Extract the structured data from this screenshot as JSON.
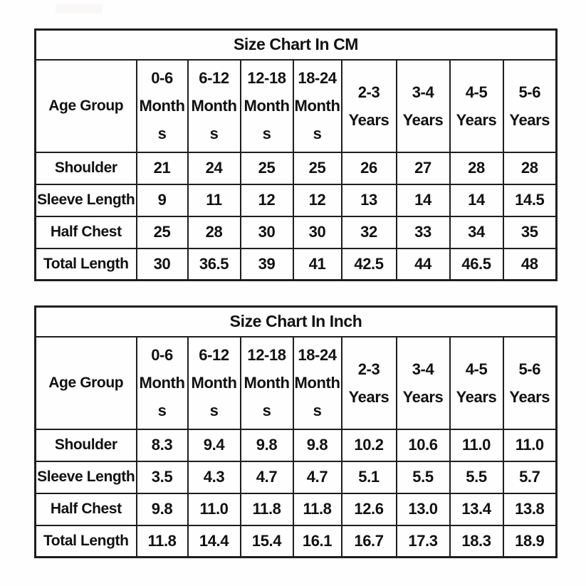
{
  "page": {
    "background_color": "#fefefe",
    "border_color": "#1e1e1e",
    "text_color": "#111111",
    "watermark_color": "#faf7f7"
  },
  "tables": [
    {
      "title": "Size Chart In CM",
      "corner_label": "Age Group",
      "columns": [
        [
          "0-6",
          "Month",
          "s"
        ],
        [
          "6-12",
          "Month",
          "s"
        ],
        [
          "12-18",
          "Month",
          "s"
        ],
        [
          "18-24",
          "Month",
          "s"
        ],
        [
          "2-3",
          "Years"
        ],
        [
          "3-4",
          "Years"
        ],
        [
          "4-5",
          "Years"
        ],
        [
          "5-6",
          "Years"
        ]
      ],
      "rows": [
        {
          "label": "Shoulder",
          "values": [
            "21",
            "24",
            "25",
            "25",
            "26",
            "27",
            "28",
            "28"
          ]
        },
        {
          "label": "Sleeve Length",
          "values": [
            "9",
            "11",
            "12",
            "12",
            "13",
            "14",
            "14",
            "14.5"
          ]
        },
        {
          "label": "Half Chest",
          "values": [
            "25",
            "28",
            "30",
            "30",
            "32",
            "33",
            "34",
            "35"
          ]
        },
        {
          "label": "Total Length",
          "values": [
            "30",
            "36.5",
            "39",
            "41",
            "42.5",
            "44",
            "46.5",
            "48"
          ]
        }
      ]
    },
    {
      "title": "Size Chart In Inch",
      "corner_label": "Age Group",
      "columns": [
        [
          "0-6",
          "Month",
          "s"
        ],
        [
          "6-12",
          "Month",
          "s"
        ],
        [
          "12-18",
          "Month",
          "s"
        ],
        [
          "18-24",
          "Month",
          "s"
        ],
        [
          "2-3",
          "Years"
        ],
        [
          "3-4",
          "Years"
        ],
        [
          "4-5",
          "Years"
        ],
        [
          "5-6",
          "Years"
        ]
      ],
      "rows": [
        {
          "label": "Shoulder",
          "values": [
            "8.3",
            "9.4",
            "9.8",
            "9.8",
            "10.2",
            "10.6",
            "11.0",
            "11.0"
          ]
        },
        {
          "label": "Sleeve Length",
          "values": [
            "3.5",
            "4.3",
            "4.7",
            "4.7",
            "5.1",
            "5.5",
            "5.5",
            "5.7"
          ]
        },
        {
          "label": "Half Chest",
          "values": [
            "9.8",
            "11.0",
            "11.8",
            "11.8",
            "12.6",
            "13.0",
            "13.4",
            "13.8"
          ]
        },
        {
          "label": "Total Length",
          "values": [
            "11.8",
            "14.4",
            "15.4",
            "16.1",
            "16.7",
            "17.3",
            "18.3",
            "18.9"
          ]
        }
      ]
    }
  ],
  "chart_data": [
    {
      "type": "table",
      "title": "Size Chart In CM",
      "columns": [
        "Age Group",
        "0-6 Months",
        "6-12 Months",
        "12-18 Months",
        "18-24 Months",
        "2-3 Years",
        "3-4 Years",
        "4-5 Years",
        "5-6 Years"
      ],
      "rows": [
        [
          "Shoulder",
          21,
          24,
          25,
          25,
          26,
          27,
          28,
          28
        ],
        [
          "Sleeve Length",
          9,
          11,
          12,
          12,
          13,
          14,
          14,
          14.5
        ],
        [
          "Half Chest",
          25,
          28,
          30,
          30,
          32,
          33,
          34,
          35
        ],
        [
          "Total Length",
          30,
          36.5,
          39,
          41,
          42.5,
          44,
          46.5,
          48
        ]
      ]
    },
    {
      "type": "table",
      "title": "Size Chart In Inch",
      "columns": [
        "Age Group",
        "0-6 Months",
        "6-12 Months",
        "12-18 Months",
        "18-24 Months",
        "2-3 Years",
        "3-4 Years",
        "4-5 Years",
        "5-6 Years"
      ],
      "rows": [
        [
          "Shoulder",
          8.3,
          9.4,
          9.8,
          9.8,
          10.2,
          10.6,
          11.0,
          11.0
        ],
        [
          "Sleeve Length",
          3.5,
          4.3,
          4.7,
          4.7,
          5.1,
          5.5,
          5.5,
          5.7
        ],
        [
          "Half Chest",
          9.8,
          11.0,
          11.8,
          11.8,
          12.6,
          13.0,
          13.4,
          13.8
        ],
        [
          "Total Length",
          11.8,
          14.4,
          15.4,
          16.1,
          16.7,
          17.3,
          18.3,
          18.9
        ]
      ]
    }
  ]
}
